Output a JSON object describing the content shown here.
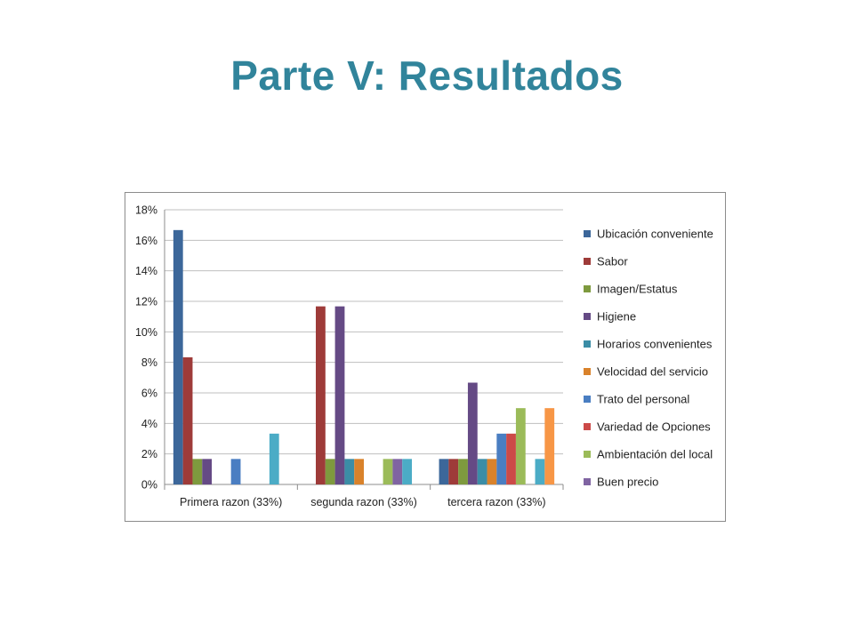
{
  "slide": {
    "title": "Parte V: Resultados"
  },
  "chart_data": {
    "type": "bar",
    "categories": [
      "Primera razon (33%)",
      "segunda razon (33%)",
      "tercera razon (33%)"
    ],
    "y_ticks": [
      "0%",
      "2%",
      "4%",
      "6%",
      "8%",
      "10%",
      "12%",
      "14%",
      "16%",
      "18%"
    ],
    "ylim": [
      0,
      18
    ],
    "grid": true,
    "legend_position": "right",
    "series": [
      {
        "name": "Ubicación conveniente",
        "color": "#3C679A",
        "values": [
          16.67,
          0,
          1.67
        ]
      },
      {
        "name": "Sabor",
        "color": "#9E3B39",
        "values": [
          8.33,
          11.67,
          1.67
        ]
      },
      {
        "name": "Imagen/Estatus",
        "color": "#7E9A3E",
        "values": [
          1.67,
          1.67,
          1.67
        ]
      },
      {
        "name": "Higiene",
        "color": "#654A85",
        "values": [
          1.67,
          11.67,
          6.67
        ]
      },
      {
        "name": "Horarios convenientes",
        "color": "#3B8DA6",
        "values": [
          0,
          1.67,
          1.67
        ]
      },
      {
        "name": "Velocidad del servicio",
        "color": "#D9822B",
        "values": [
          0,
          1.67,
          1.67
        ]
      },
      {
        "name": "Trato del personal",
        "color": "#4A7EC2",
        "values": [
          1.67,
          0,
          3.33
        ]
      },
      {
        "name": "Variedad de Opciones",
        "color": "#CC4A48",
        "values": [
          0,
          0,
          3.33
        ]
      },
      {
        "name": "Ambientación del local",
        "color": "#9BBB59",
        "values": [
          0,
          1.67,
          5.0
        ]
      },
      {
        "name": "Buen precio",
        "color": "#8064A2",
        "values": [
          0,
          1.67,
          0
        ]
      },
      {
        "name": "",
        "color": "#4BACC6",
        "values": [
          3.33,
          1.67,
          1.67
        ]
      },
      {
        "name": "",
        "color": "#F79646",
        "values": [
          0,
          0,
          5.0
        ]
      }
    ]
  }
}
